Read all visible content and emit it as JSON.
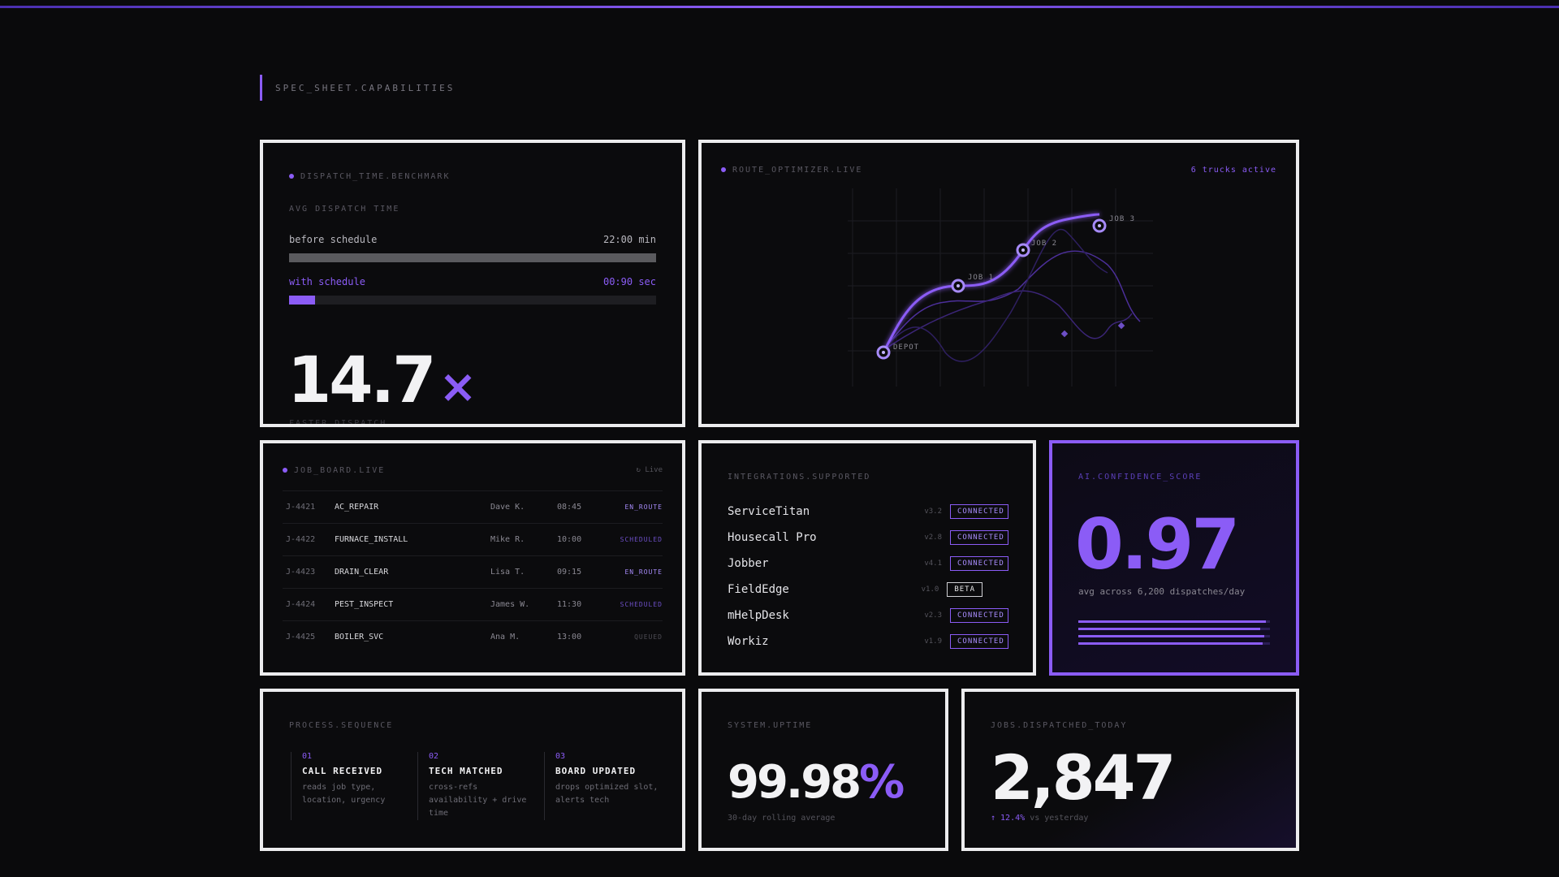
{
  "colors": {
    "accent": "#8b5cf6",
    "background": "#0a0a0c",
    "border": "#ececee"
  },
  "section_title": "SPEC_SHEET.CAPABILITIES",
  "dispatch": {
    "label": "DISPATCH_TIME.BENCHMARK",
    "sub_label": "AVG DISPATCH TIME",
    "before_label": "before schedule",
    "before_value": "22:00 min",
    "before_fraction": 1.0,
    "with_label": "with schedule",
    "with_value": "00:90 sec",
    "with_fraction": 0.07,
    "big_number": "14.7",
    "big_suffix": "×",
    "caption": "FASTER DISPATCH"
  },
  "route": {
    "label": "ROUTE_OPTIMIZER.LIVE",
    "status": "6 trucks active",
    "stops": [
      "DEPOT",
      "JOB 1",
      "JOB 2",
      "JOB 3"
    ]
  },
  "job_board": {
    "label": "JOB_BOARD.LIVE",
    "live_label": "↻ Live",
    "rows": [
      {
        "id": "J-4421",
        "type": "AC_REPAIR",
        "tech": "Dave K.",
        "time": "08:45",
        "status": "EN_ROUTE",
        "status_color": "#a78bfa"
      },
      {
        "id": "J-4422",
        "type": "FURNACE_INSTALL",
        "tech": "Mike R.",
        "time": "10:00",
        "status": "SCHEDULED",
        "status_color": "#6d4fc7"
      },
      {
        "id": "J-4423",
        "type": "DRAIN_CLEAR",
        "tech": "Lisa T.",
        "time": "09:15",
        "status": "EN_ROUTE",
        "status_color": "#a78bfa"
      },
      {
        "id": "J-4424",
        "type": "PEST_INSPECT",
        "tech": "James W.",
        "time": "11:30",
        "status": "SCHEDULED",
        "status_color": "#6d4fc7"
      },
      {
        "id": "J-4425",
        "type": "BOILER_SVC",
        "tech": "Ana M.",
        "time": "13:00",
        "status": "QUEUED",
        "status_color": "#4e4d55"
      }
    ]
  },
  "integrations": {
    "label": "INTEGRATIONS.SUPPORTED",
    "items": [
      {
        "name": "ServiceTitan",
        "version": "v3.2",
        "status": "CONNECTED"
      },
      {
        "name": "Housecall Pro",
        "version": "v2.8",
        "status": "CONNECTED"
      },
      {
        "name": "Jobber",
        "version": "v4.1",
        "status": "CONNECTED"
      },
      {
        "name": "FieldEdge",
        "version": "v1.0",
        "status": "BETA"
      },
      {
        "name": "mHelpDesk",
        "version": "v2.3",
        "status": "CONNECTED"
      },
      {
        "name": "Workiz",
        "version": "v1.9",
        "status": "CONNECTED"
      }
    ]
  },
  "ai": {
    "label": "AI.CONFIDENCE_SCORE",
    "score": "0.97",
    "caption": "avg across 6,200 dispatches/day",
    "bars": [
      0.98,
      0.95,
      0.97,
      0.96
    ]
  },
  "process": {
    "label": "PROCESS.SEQUENCE",
    "steps": [
      {
        "num": "01",
        "title": "CALL RECEIVED",
        "desc": "reads job type, location, urgency"
      },
      {
        "num": "02",
        "title": "TECH MATCHED",
        "desc": "cross-refs availability + drive time"
      },
      {
        "num": "03",
        "title": "BOARD UPDATED",
        "desc": "drops optimized slot, alerts tech"
      }
    ]
  },
  "uptime": {
    "label": "SYSTEM.UPTIME",
    "value": "99.98",
    "suffix": "%",
    "caption": "30-day rolling average"
  },
  "jobs_today": {
    "label": "JOBS.DISPATCHED_TODAY",
    "value": "2,847",
    "delta": "↑ 12.4%",
    "delta_caption": "vs yesterday"
  }
}
